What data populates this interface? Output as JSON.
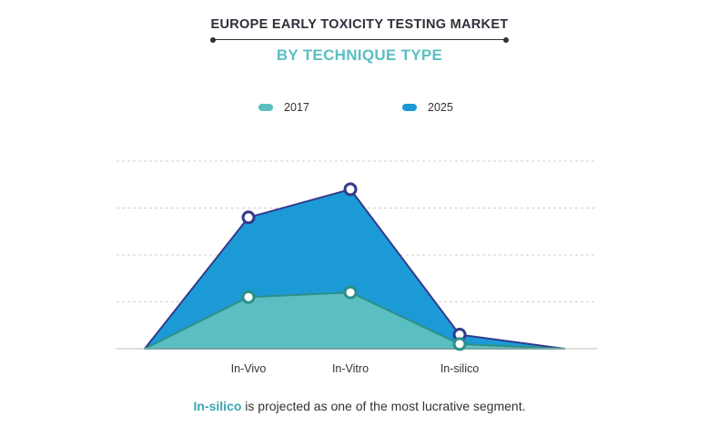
{
  "title": "EUROPE EARLY TOXICITY TESTING MARKET",
  "subtitle": "BY TECHNIQUE TYPE",
  "caption": {
    "highlight": "In-silico",
    "text": " is projected as one of the most lucrative segment."
  },
  "colors": {
    "series_2017": "#5bbfc2",
    "series_2025": "#1b9ad6",
    "line_2025": "#333a8c",
    "line_2017": "#2e8f86",
    "grid": "#cfcfcf"
  },
  "chart_data": {
    "type": "area",
    "categories": [
      "In-Vivo",
      "In-Vitro",
      "In-silico"
    ],
    "series": [
      {
        "name": "2017",
        "values": [
          1.1,
          1.2,
          0.1
        ]
      },
      {
        "name": "2025",
        "values": [
          2.8,
          3.4,
          0.3
        ]
      }
    ],
    "ylim": [
      0,
      4
    ],
    "grid": true,
    "legend_position": "top",
    "xlabel": "",
    "ylabel": ""
  }
}
